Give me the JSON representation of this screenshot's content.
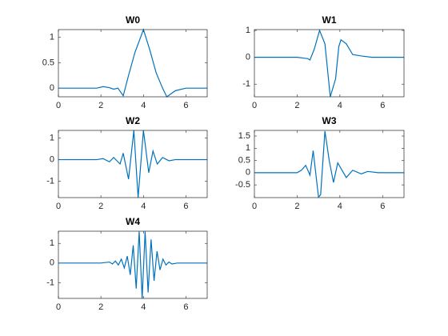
{
  "chart_data": [
    {
      "type": "line",
      "title": "W0",
      "color": "#0072bd",
      "x": [
        0,
        1.8,
        2.1,
        2.4,
        2.6,
        2.8,
        3.05,
        3.3,
        3.6,
        4.0,
        4.3,
        4.6,
        4.9,
        5.1,
        5.5,
        6.0,
        7.0
      ],
      "values": [
        0,
        0,
        0.03,
        0.01,
        -0.02,
        0,
        -0.15,
        0.25,
        0.7,
        1.15,
        0.75,
        0.3,
        0,
        -0.17,
        -0.05,
        0,
        0
      ],
      "xlim": [
        0,
        7
      ],
      "xticks": [
        0,
        2,
        4,
        6
      ],
      "ylim": [
        -0.17,
        1.15
      ],
      "yticks": [
        0,
        0.5,
        1
      ]
    },
    {
      "type": "line",
      "title": "W1",
      "color": "#0072bd",
      "x": [
        0,
        2.0,
        2.5,
        2.6,
        2.8,
        3.05,
        3.3,
        3.55,
        3.8,
        3.95,
        4.05,
        4.3,
        4.6,
        5.0,
        5.5,
        7.0
      ],
      "values": [
        0,
        0,
        -0.05,
        -0.1,
        0.3,
        1.0,
        0.5,
        -1.47,
        -0.8,
        0.4,
        0.65,
        0.5,
        0.1,
        0.05,
        0,
        0
      ],
      "xlim": [
        0,
        7
      ],
      "xticks": [
        0,
        2,
        4,
        6
      ],
      "ylim": [
        -1.47,
        1.03
      ],
      "yticks": [
        -1,
        0,
        1
      ]
    },
    {
      "type": "line",
      "title": "W2",
      "color": "#0072bd",
      "x": [
        0,
        1.8,
        2.1,
        2.4,
        2.6,
        2.9,
        3.05,
        3.3,
        3.55,
        3.75,
        4.0,
        4.25,
        4.45,
        4.65,
        4.9,
        5.2,
        5.5,
        7.0
      ],
      "values": [
        0,
        0,
        0.05,
        -0.1,
        0.1,
        -0.2,
        0.3,
        -0.9,
        1.35,
        -1.75,
        1.35,
        -0.6,
        0.4,
        -0.2,
        0.1,
        -0.05,
        0,
        0
      ],
      "xlim": [
        0,
        7
      ],
      "xticks": [
        0,
        2,
        4,
        6
      ],
      "ylim": [
        -1.75,
        1.35
      ],
      "yticks": [
        -1,
        0,
        1
      ]
    },
    {
      "type": "line",
      "title": "W3",
      "color": "#0072bd",
      "x": [
        0,
        1.8,
        2.0,
        2.2,
        2.4,
        2.6,
        2.75,
        3.0,
        3.1,
        3.3,
        3.5,
        3.7,
        3.9,
        4.1,
        4.3,
        4.6,
        5.0,
        5.3,
        5.8,
        7.0
      ],
      "values": [
        0,
        0,
        0,
        0.1,
        0.3,
        -0.1,
        0.9,
        -1.0,
        -0.9,
        1.7,
        0.5,
        -0.4,
        0.4,
        0.1,
        -0.2,
        0.1,
        -0.05,
        0.05,
        0,
        0
      ],
      "xlim": [
        0,
        7
      ],
      "xticks": [
        0,
        2,
        4,
        6
      ],
      "ylim": [
        -1.02,
        1.73
      ],
      "yticks": [
        -0.5,
        0,
        0.5,
        1,
        1.5
      ]
    },
    {
      "type": "line",
      "title": "W4",
      "color": "#0072bd",
      "x": [
        0,
        2.0,
        2.4,
        2.54,
        2.68,
        2.82,
        2.96,
        3.1,
        3.24,
        3.38,
        3.52,
        3.66,
        3.8,
        3.94,
        4.08,
        4.22,
        4.36,
        4.5,
        4.64,
        4.78,
        4.92,
        5.06,
        5.2,
        5.34,
        5.6,
        7.0
      ],
      "values": [
        0,
        0,
        0.05,
        -0.05,
        0.1,
        -0.1,
        0.2,
        -0.25,
        0.35,
        -0.6,
        0.9,
        -1.3,
        1.6,
        -1.8,
        1.6,
        -1.5,
        1.2,
        -0.9,
        0.6,
        -0.35,
        0.2,
        -0.1,
        0.05,
        -0.05,
        0,
        0
      ],
      "xlim": [
        0,
        7
      ],
      "xticks": [
        0,
        2,
        4,
        6
      ],
      "ylim": [
        -1.8,
        1.62
      ],
      "yticks": [
        -1,
        0,
        1
      ]
    }
  ]
}
